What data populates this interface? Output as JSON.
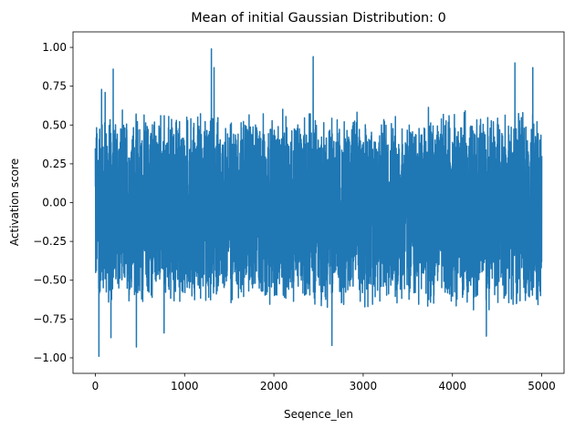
{
  "chart_data": {
    "type": "line",
    "title": "Mean of initial Gaussian Distribution: 0",
    "xlabel": "Seqence_len",
    "ylabel": "Activation score",
    "xlim": [
      -250,
      5250
    ],
    "ylim": [
      -1.1,
      1.1
    ],
    "x_ticks": [
      0,
      1000,
      2000,
      3000,
      4000,
      5000
    ],
    "x_tick_labels": [
      "0",
      "1000",
      "2000",
      "3000",
      "4000",
      "5000"
    ],
    "y_ticks": [
      1.0,
      0.75,
      0.5,
      0.25,
      0.0,
      -0.25,
      -0.5,
      -0.75,
      -1.0
    ],
    "y_tick_labels": [
      "1.00",
      "0.75",
      "0.50",
      "0.25",
      "0.00",
      "−0.25",
      "−0.50",
      "−0.75",
      "−1.00"
    ],
    "grid": false,
    "series": [
      {
        "color": "#1f77b4",
        "x": [
          0,
          40,
          70,
          110,
          150,
          175,
          200,
          460,
          770,
          1300,
          1330,
          2440,
          2650,
          4380,
          4700,
          4900,
          5000
        ],
        "values": [
          0.35,
          -0.99,
          0.73,
          0.71,
          0.0,
          -0.87,
          0.86,
          -0.93,
          -0.84,
          0.99,
          0.87,
          0.94,
          -0.92,
          -0.86,
          0.9,
          0.87,
          0.3
        ]
      }
    ]
  }
}
